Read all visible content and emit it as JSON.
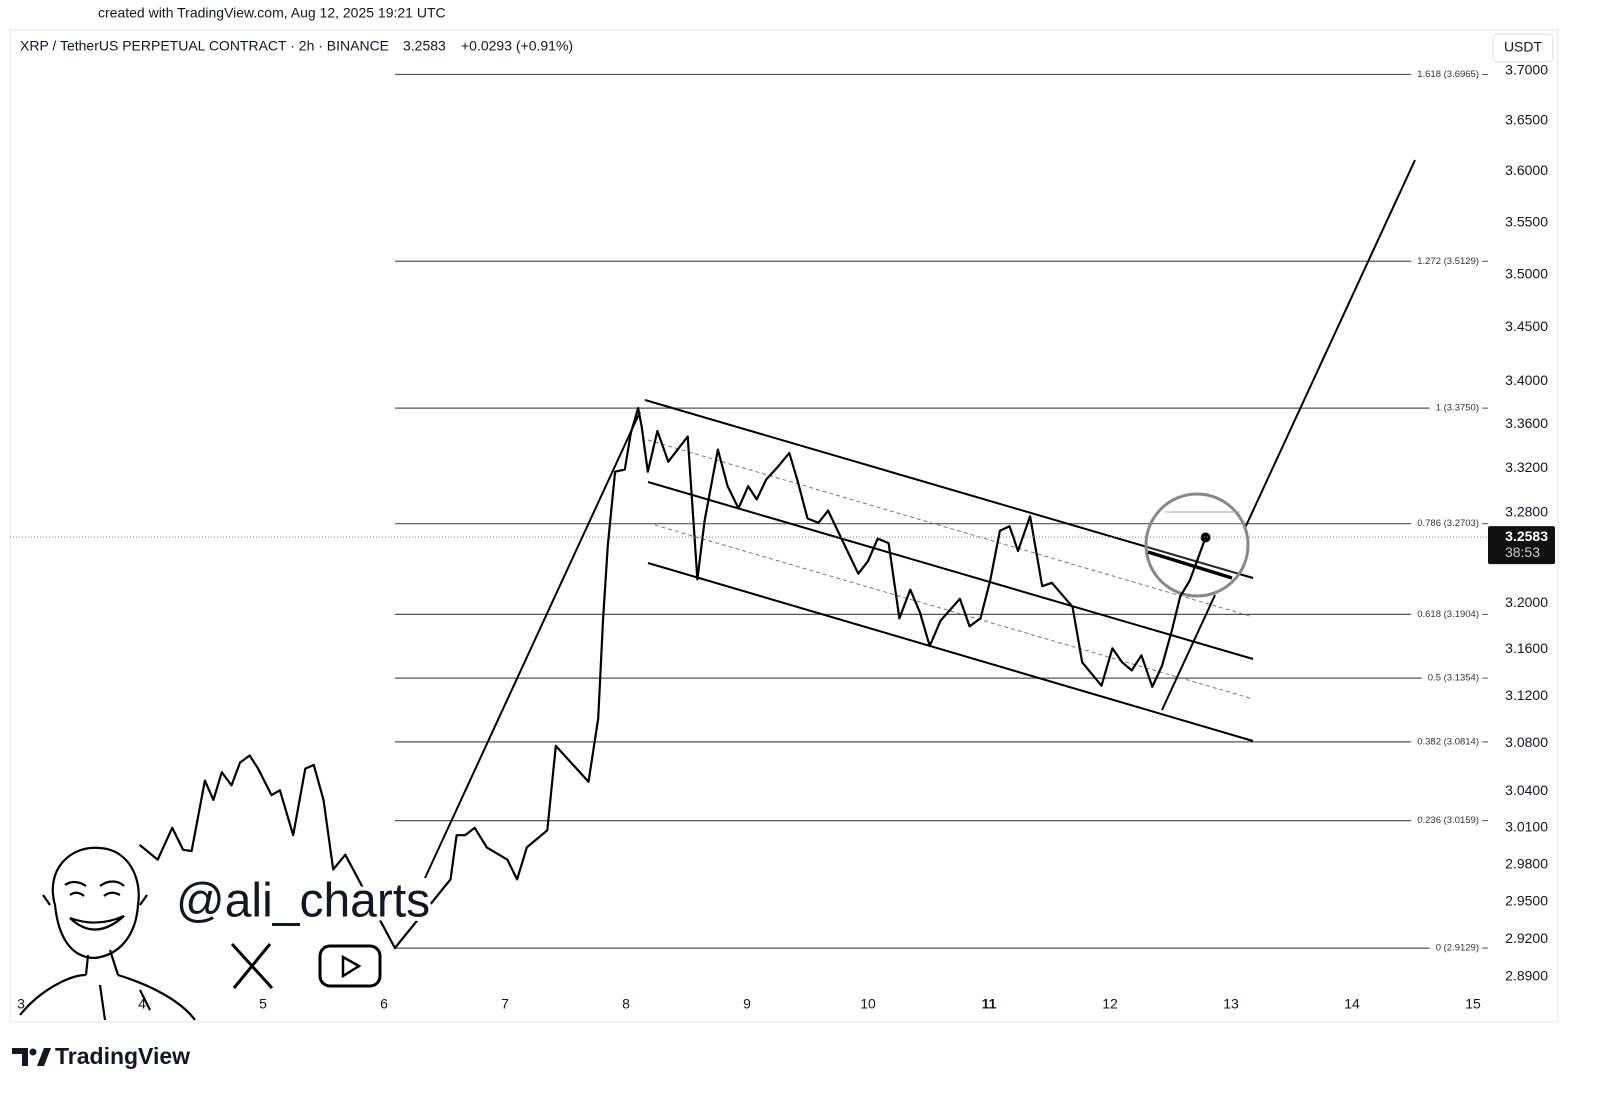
{
  "header": {
    "created": "created with TradingView.com, Aug 12, 2025 19:21 UTC",
    "brand": "TradingView",
    "watermark": "@ali_charts"
  },
  "chart_data": {
    "type": "line",
    "title": "XRP / TetherUS PERPETUAL CONTRACT · 2h · BINANCE",
    "last_price": 3.2583,
    "change": "+0.0293 (+0.91%)",
    "currency": "USDT",
    "countdown": "38:53",
    "color": "#000000",
    "log_scale": true,
    "x": [
      3.98,
      4.13,
      4.25,
      4.34,
      4.41,
      4.52,
      4.59,
      4.66,
      4.74,
      4.81,
      4.89,
      4.96,
      5.07,
      5.14,
      5.25,
      5.35,
      5.42,
      5.5,
      5.58,
      5.68,
      6.09,
      6.55,
      6.6,
      6.67,
      6.75,
      6.85,
      7.02,
      7.1,
      7.18,
      7.35,
      7.42,
      7.6,
      7.69,
      7.77,
      7.81,
      7.85,
      7.91,
      7.99,
      8.04,
      8.1,
      8.13,
      8.18,
      8.26,
      8.35,
      8.51,
      8.59,
      8.65,
      8.76,
      8.84,
      8.93,
      9.01,
      9.08,
      9.16,
      9.26,
      9.35,
      9.42,
      9.5,
      9.59,
      9.67,
      9.83,
      9.92,
      10.0,
      10.08,
      10.17,
      10.26,
      10.35,
      10.43,
      10.51,
      10.6,
      10.76,
      10.84,
      10.93,
      11.01,
      11.09,
      11.17,
      11.24,
      11.34,
      11.44,
      11.52,
      11.69,
      11.77,
      11.93,
      12.02,
      12.1,
      12.18,
      12.26,
      12.35,
      12.43,
      12.51,
      12.58,
      12.66,
      12.79
    ],
    "values": [
      2.996,
      2.984,
      3.01,
      2.992,
      2.991,
      3.049,
      3.033,
      3.056,
      3.045,
      3.064,
      3.07,
      3.059,
      3.037,
      3.041,
      3.004,
      3.059,
      3.062,
      3.033,
      2.976,
      2.988,
      2.913,
      2.968,
      3.004,
      3.004,
      3.01,
      2.994,
      2.984,
      2.968,
      2.994,
      3.008,
      3.078,
      3.058,
      3.048,
      3.101,
      3.185,
      3.251,
      3.317,
      3.319,
      3.352,
      3.375,
      3.358,
      3.317,
      3.354,
      3.326,
      3.349,
      3.221,
      3.273,
      3.337,
      3.304,
      3.284,
      3.304,
      3.292,
      3.31,
      3.322,
      3.334,
      3.308,
      3.275,
      3.271,
      3.282,
      3.246,
      3.226,
      3.237,
      3.257,
      3.253,
      3.187,
      3.212,
      3.192,
      3.163,
      3.185,
      3.204,
      3.18,
      3.187,
      3.22,
      3.264,
      3.268,
      3.246,
      3.277,
      3.215,
      3.218,
      3.197,
      3.149,
      3.129,
      3.161,
      3.149,
      3.142,
      3.155,
      3.128,
      3.146,
      3.176,
      3.206,
      3.22,
      3.258
    ],
    "xlim": [
      2.91,
      15.12
    ],
    "xticks": [
      3,
      4,
      5,
      6,
      7,
      8,
      9,
      10,
      11,
      12,
      13,
      14,
      15
    ],
    "ylim": [
      2.87,
      3.72
    ],
    "yticks": [
      {
        "value": 3.7,
        "label": "3.7000"
      },
      {
        "value": 3.65,
        "label": "3.6500"
      },
      {
        "value": 3.6,
        "label": "3.6000"
      },
      {
        "value": 3.55,
        "label": "3.5500"
      },
      {
        "value": 3.5,
        "label": "3.5000"
      },
      {
        "value": 3.45,
        "label": "3.4500"
      },
      {
        "value": 3.4,
        "label": "3.4000"
      },
      {
        "value": 3.36,
        "label": "3.3600"
      },
      {
        "value": 3.32,
        "label": "3.3200"
      },
      {
        "value": 3.28,
        "label": "3.2800"
      },
      {
        "value": 3.2,
        "label": "3.2000"
      },
      {
        "value": 3.16,
        "label": "3.1600"
      },
      {
        "value": 3.12,
        "label": "3.1200"
      },
      {
        "value": 3.08,
        "label": "3.0800"
      },
      {
        "value": 3.04,
        "label": "3.0400"
      },
      {
        "value": 3.01,
        "label": "3.0100"
      },
      {
        "value": 2.98,
        "label": "2.9800"
      },
      {
        "value": 2.95,
        "label": "2.9500"
      },
      {
        "value": 2.92,
        "label": "2.9200"
      },
      {
        "value": 2.89,
        "label": "2.8900"
      }
    ],
    "fib_levels": [
      {
        "value": 3.6965,
        "label": "1.618 (3.6965)"
      },
      {
        "value": 3.5129,
        "label": "1.272 (3.5129)"
      },
      {
        "value": 3.375,
        "label": "1 (3.3750)"
      },
      {
        "value": 3.2703,
        "label": "0.786 (3.2703)"
      },
      {
        "value": 3.1904,
        "label": "0.618 (3.1904)"
      },
      {
        "value": 3.1354,
        "label": "0.5 (3.1354)"
      },
      {
        "value": 3.0814,
        "label": "0.382 (3.0814)"
      },
      {
        "value": 3.0159,
        "label": "0.236 (3.0159)"
      },
      {
        "value": 2.9129,
        "label": "0 (2.9129)"
      }
    ]
  }
}
